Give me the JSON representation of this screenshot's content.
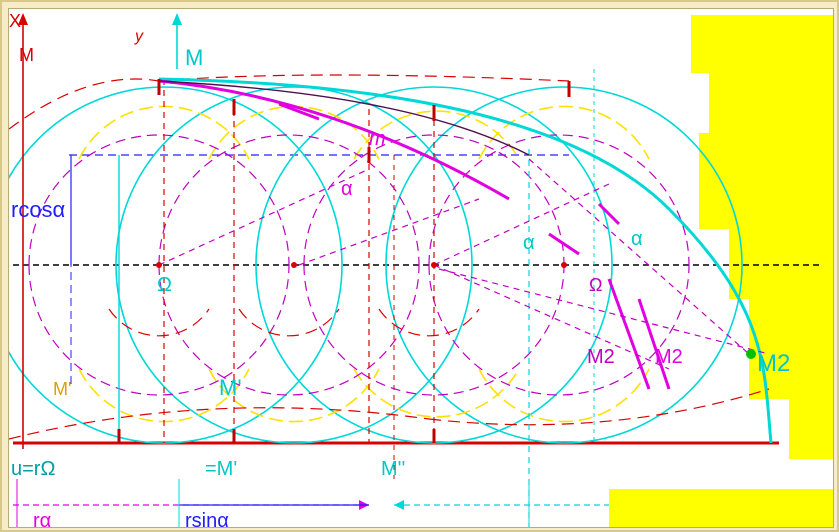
{
  "labels": {
    "x_axis": "X",
    "y_axis": "y",
    "m_top_left": "M",
    "m_top": "M",
    "m_arc": "m",
    "alpha_1": "α",
    "alpha_2": "α",
    "alpha_3": "α",
    "r_cos_alpha": "rcosα",
    "omega": "Ω",
    "omega_2": "Ω",
    "m_prime_left": "M'",
    "m_prime_mid": "M'",
    "m2_a": "M2",
    "m2_b": "M2",
    "m2_right": "M2",
    "u_eq": "u=rΩ",
    "m_prime_bottom": "=M'",
    "m_double_prime": "M''",
    "r_alpha": "rα",
    "r_sin_alpha": "rsinα"
  },
  "colors": {
    "background": "#ffffff",
    "highlight": "#ffff00",
    "cyan": "#00d8d8",
    "magenta": "#e000e0",
    "red": "#d80000",
    "dark_red": "#b00000",
    "yellow": "#ffe000",
    "blue": "#2020ff",
    "black": "#000000"
  }
}
